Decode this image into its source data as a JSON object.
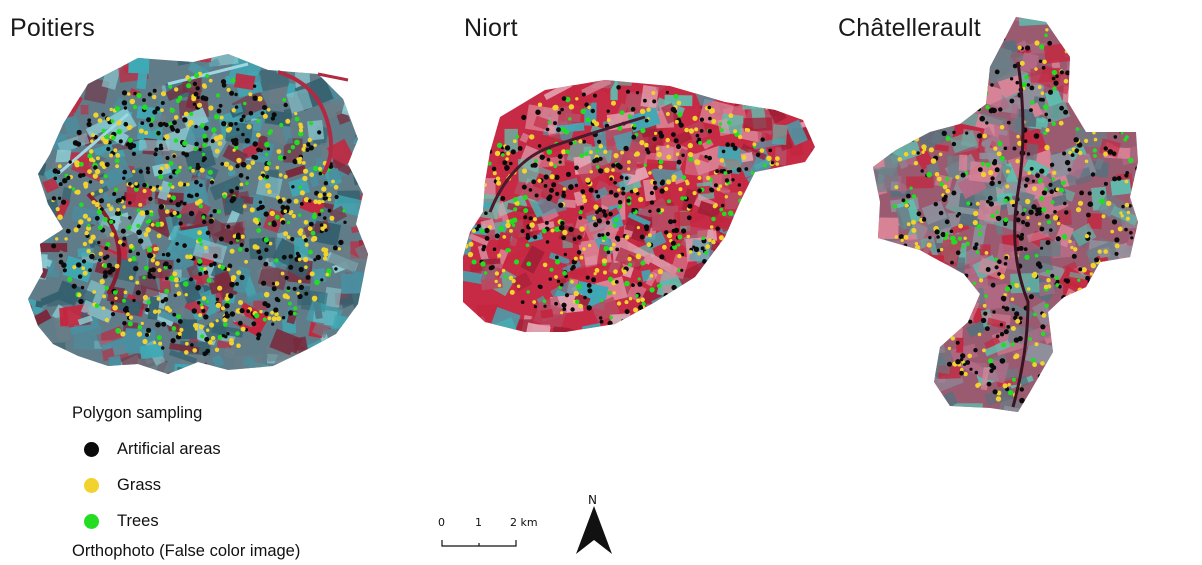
{
  "titles": {
    "poitiers": "Poitiers",
    "niort": "Niort",
    "chatellerault": "Châtellerault"
  },
  "legend": {
    "title": "Polygon sampling",
    "items": [
      {
        "label": "Artificial areas",
        "color": "#0b0b0b"
      },
      {
        "label": "Grass",
        "color": "#f2d22c"
      },
      {
        "label": "Trees",
        "color": "#22dd22"
      }
    ],
    "footer": "Orthophoto (False color image)"
  },
  "scale_bar": {
    "ticks": [
      "0",
      "1",
      "2 km"
    ]
  },
  "north_arrow": {
    "label": "N"
  },
  "colors": {
    "urban_cyan": "#3fa9b5",
    "urban_gray": "#6b7d86",
    "vegetation_red": "#c4263f",
    "field_pink": "#d98397",
    "field_teal": "#5fbfae"
  }
}
